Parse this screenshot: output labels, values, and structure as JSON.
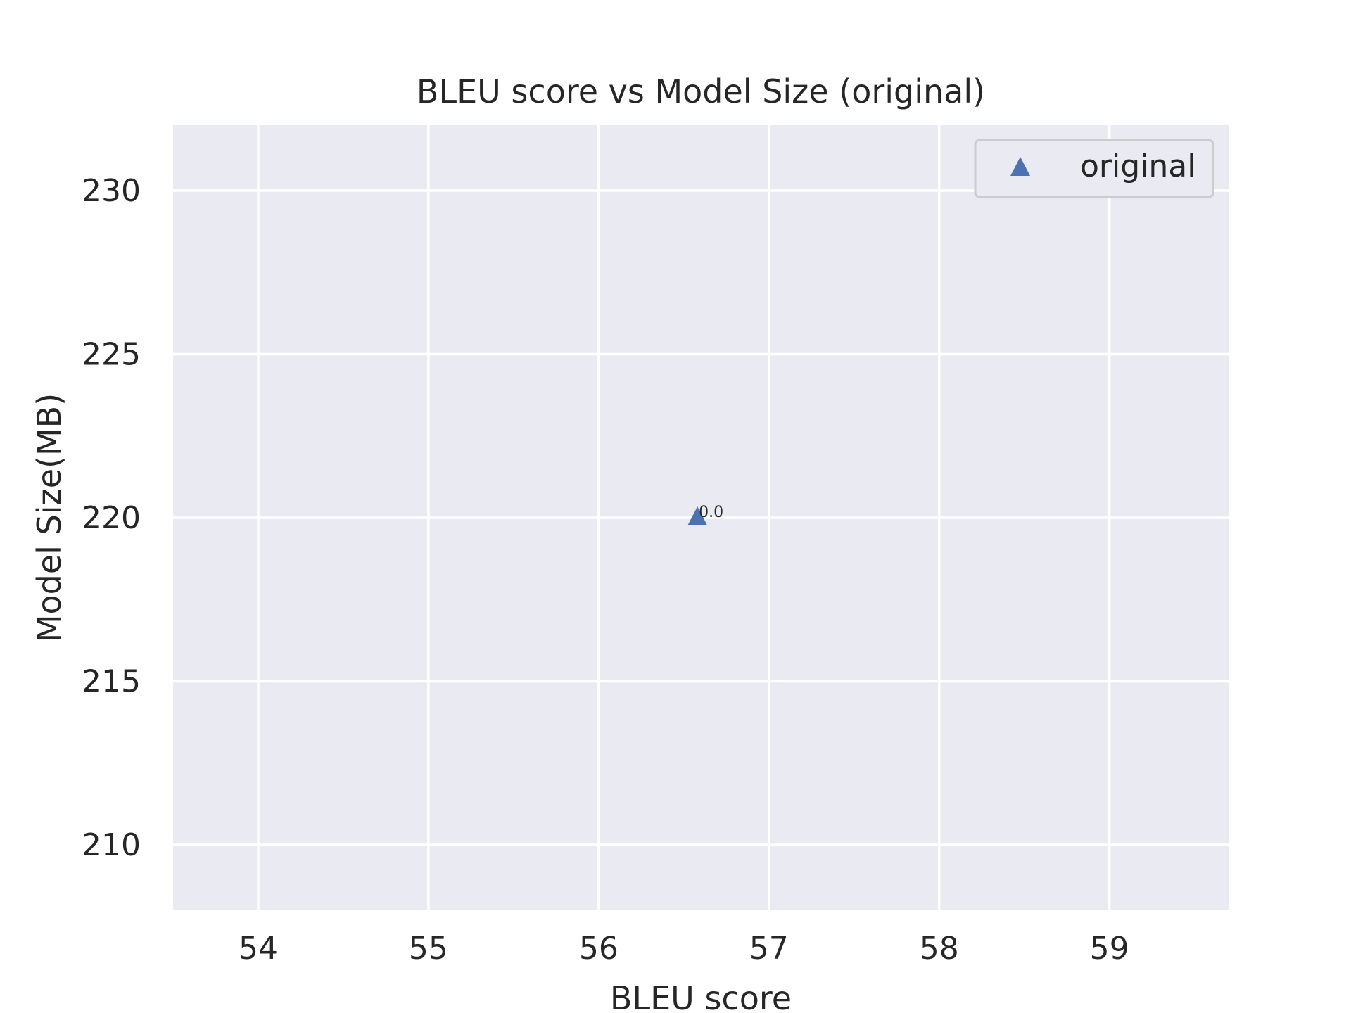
{
  "chart_data": {
    "type": "scatter",
    "title": "BLEU score vs Model Size (original)",
    "xlabel": "BLEU score",
    "ylabel": "Model Size(MB)",
    "xlim": [
      53.5,
      59.7
    ],
    "ylim": [
      208,
      232
    ],
    "xticks": [
      54,
      55,
      56,
      57,
      58,
      59
    ],
    "yticks": [
      210,
      215,
      220,
      225,
      230
    ],
    "grid": true,
    "legend": {
      "position": "top-right",
      "entries": [
        "original"
      ]
    },
    "series": [
      {
        "name": "original",
        "marker": "triangle-up",
        "color": "#4c72b0",
        "points": [
          {
            "x": 56.58,
            "y": 220.0,
            "label": "0.0"
          }
        ]
      }
    ]
  },
  "colors": {
    "plot_background": "#eaeaf2",
    "grid": "#ffffff",
    "text": "#262626",
    "marker": "#4c72b0"
  }
}
